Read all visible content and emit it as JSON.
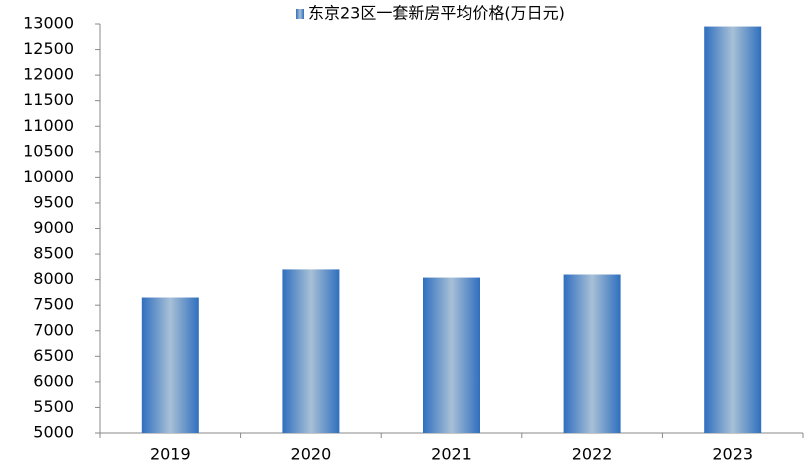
{
  "chart_data": {
    "type": "bar",
    "categories": [
      "2019",
      "2020",
      "2021",
      "2022",
      "2023"
    ],
    "series": [
      {
        "name": "东京23区一套新房平均价格(万日元)",
        "color": "#2f6fbf",
        "values": [
          7650,
          8200,
          8040,
          8100,
          12950
        ]
      }
    ],
    "ylim": [
      5000,
      13000
    ],
    "yticks": [
      5000,
      5500,
      6000,
      6500,
      7000,
      7500,
      8000,
      8500,
      9000,
      9500,
      10000,
      10500,
      11000,
      11500,
      12000,
      12500,
      13000
    ],
    "grid": false,
    "legend": "top"
  }
}
